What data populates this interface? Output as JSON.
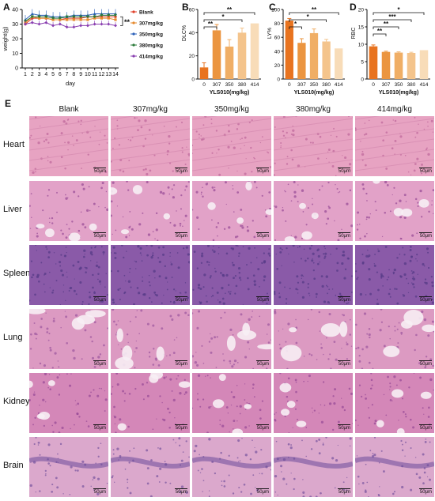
{
  "panels": {
    "A": "A",
    "B": "B",
    "C": "C",
    "D": "D",
    "E": "E"
  },
  "chart_data": [
    {
      "id": "A",
      "type": "line",
      "xlabel": "day",
      "ylabel": "weight(g)",
      "xlim": [
        1,
        14
      ],
      "ylim": [
        0,
        40
      ],
      "yticks": [
        0,
        10,
        20,
        30,
        40
      ],
      "x": [
        1,
        2,
        3,
        4,
        5,
        6,
        7,
        8,
        9,
        10,
        11,
        12,
        13,
        14
      ],
      "annotation": "**",
      "legend_position": "right",
      "series": [
        {
          "name": "Blank",
          "color": "#e0402a",
          "marker": "circle",
          "values": [
            30,
            34,
            34,
            34,
            33,
            33,
            34,
            34,
            34,
            35,
            35,
            35,
            35,
            35
          ]
        },
        {
          "name": "307mg/kg",
          "color": "#e68a2e",
          "marker": "square",
          "values": [
            31,
            35,
            34,
            34,
            33,
            33,
            33,
            33,
            33,
            33,
            34,
            34,
            34,
            33
          ]
        },
        {
          "name": "350mg/kg",
          "color": "#2a5fb8",
          "marker": "triangle",
          "values": [
            33,
            37,
            36,
            36,
            35,
            35,
            35,
            36,
            36,
            36,
            37,
            37,
            37,
            37
          ]
        },
        {
          "name": "380mg/kg",
          "color": "#2b7a3a",
          "marker": "triangle-down",
          "values": [
            32,
            35,
            35,
            35,
            34,
            34,
            35,
            35,
            35,
            35,
            35,
            36,
            36,
            36
          ]
        },
        {
          "name": "414mg/kg",
          "color": "#8a3fb0",
          "marker": "diamond",
          "values": [
            30,
            31,
            30,
            31,
            29,
            30,
            28,
            28,
            29,
            29,
            30,
            30,
            30,
            29
          ]
        }
      ]
    },
    {
      "id": "B",
      "type": "bar",
      "ylabel": "DLC%",
      "xlabel": "YLS010(mg/kg)",
      "categories": [
        "0",
        "307",
        "350",
        "380",
        "414"
      ],
      "values": [
        10,
        42,
        28,
        40,
        48
      ],
      "errors": [
        4,
        5,
        6,
        4,
        0
      ],
      "ylim": [
        0,
        60
      ],
      "yticks": [
        0,
        20,
        40,
        60
      ],
      "colors": [
        "#e8731f",
        "#eb9540",
        "#f0ae65",
        "#f4c48c",
        "#f8dcb8"
      ],
      "significance": [
        {
          "from": 0,
          "to": 1,
          "label": "**"
        },
        {
          "from": 0,
          "to": 3,
          "label": "*"
        },
        {
          "from": 0,
          "to": 4,
          "label": "**"
        }
      ]
    },
    {
      "id": "C",
      "type": "bar",
      "ylabel": "LY%",
      "xlabel": "YLS010(mg/kg)",
      "categories": [
        "0",
        "307",
        "350",
        "380",
        "414"
      ],
      "values": [
        84,
        52,
        66,
        54,
        44
      ],
      "errors": [
        3,
        6,
        6,
        3,
        0
      ],
      "ylim": [
        0,
        100
      ],
      "yticks": [
        0,
        20,
        40,
        60,
        80,
        100
      ],
      "colors": [
        "#e8731f",
        "#eb9540",
        "#f0ae65",
        "#f4c48c",
        "#f8dcb8"
      ],
      "significance": [
        {
          "from": 0,
          "to": 1,
          "label": "*"
        },
        {
          "from": 0,
          "to": 3,
          "label": "*"
        },
        {
          "from": 0,
          "to": 4,
          "label": "**"
        }
      ]
    },
    {
      "id": "D",
      "type": "bar",
      "ylabel": "RBC",
      "xlabel": "YLS010(mg/kg)",
      "categories": [
        "0",
        "307",
        "350",
        "380",
        "414"
      ],
      "values": [
        9.4,
        7.8,
        7.6,
        7.5,
        8.3
      ],
      "errors": [
        0.4,
        0.2,
        0.2,
        0.2,
        0
      ],
      "ylim": [
        0,
        20
      ],
      "yticks": [
        0,
        5,
        10,
        15,
        20
      ],
      "colors": [
        "#e8731f",
        "#eb9540",
        "#f0ae65",
        "#f4c48c",
        "#f8dcb8"
      ],
      "significance": [
        {
          "from": 0,
          "to": 1,
          "label": "**"
        },
        {
          "from": 0,
          "to": 2,
          "label": "**"
        },
        {
          "from": 0,
          "to": 3,
          "label": "***"
        },
        {
          "from": 0,
          "to": 4,
          "label": "*"
        }
      ]
    }
  ],
  "histology": {
    "columns": [
      "Blank",
      "307mg/kg",
      "350mg/kg",
      "380mg/kg",
      "414mg/kg"
    ],
    "rows": [
      {
        "name": "Heart",
        "base": "#e7a3c2",
        "accent": "#c06a9c"
      },
      {
        "name": "Liver",
        "base": "#e2a2c8",
        "accent": "#9a4d98"
      },
      {
        "name": "Spleen",
        "base": "#8a5aa8",
        "accent": "#553b87"
      },
      {
        "name": "Lung",
        "base": "#dc9ac2",
        "accent": "#a05aa0"
      },
      {
        "name": "Kidney",
        "base": "#d487b8",
        "accent": "#9a4c98"
      },
      {
        "name": "Brain",
        "base": "#dba8cc",
        "accent": "#7e5aa2"
      }
    ],
    "scale_label": "50μm"
  }
}
